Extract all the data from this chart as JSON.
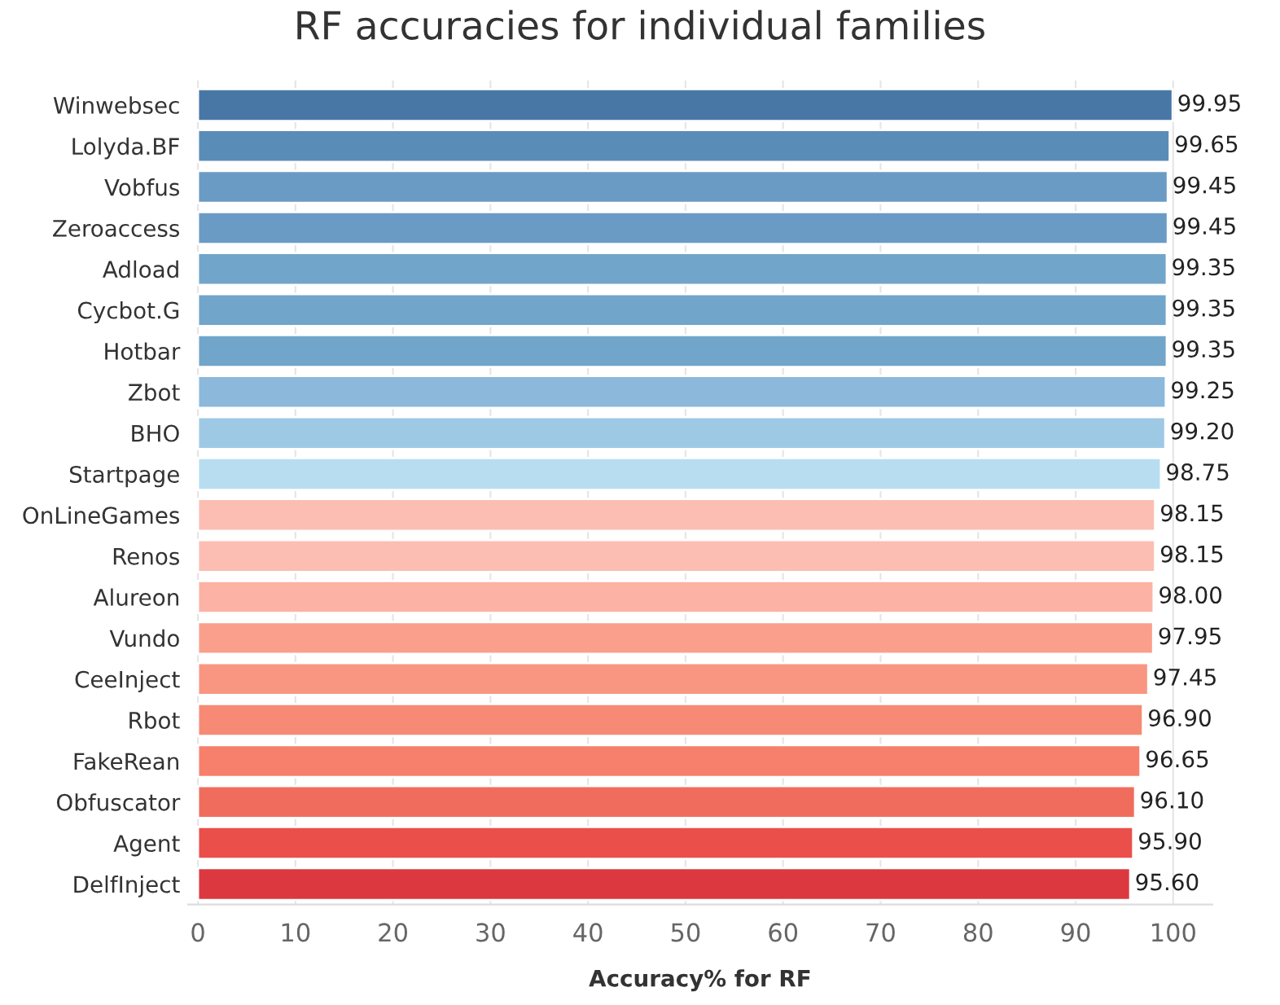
{
  "chart_data": {
    "type": "bar",
    "orientation": "horizontal",
    "title": "RF accuracies for individual families",
    "xlabel": "Accuracy% for RF",
    "categories": [
      "Winwebsec",
      "Lolyda.BF",
      "Vobfus",
      "Zeroaccess",
      "Adload",
      "Cycbot.G",
      "Hotbar",
      "Zbot",
      "BHO",
      "Startpage",
      "OnLineGames",
      "Renos",
      "Alureon",
      "Vundo",
      "CeeInject",
      "Rbot",
      "FakeRean",
      "Obfuscator",
      "Agent",
      "DelfInject"
    ],
    "values": [
      99.95,
      99.65,
      99.45,
      99.45,
      99.35,
      99.35,
      99.35,
      99.25,
      99.2,
      98.75,
      98.15,
      98.15,
      98.0,
      97.95,
      97.45,
      96.9,
      96.65,
      96.1,
      95.9,
      95.6
    ],
    "value_labels": [
      "99.95",
      "99.65",
      "99.45",
      "99.45",
      "99.35",
      "99.35",
      "99.35",
      "99.25",
      "99.20",
      "98.75",
      "98.15",
      "98.15",
      "98.00",
      "97.95",
      "97.45",
      "96.90",
      "96.65",
      "96.10",
      "95.90",
      "95.60"
    ],
    "colors": [
      "#4877a6",
      "#5a8cb8",
      "#6a9bc5",
      "#6a9bc5",
      "#72a5ca",
      "#72a5ca",
      "#72a5ca",
      "#8bb8db",
      "#9ec9e4",
      "#b8ddf0",
      "#fcbeb2",
      "#fcbeb2",
      "#fcb2a4",
      "#fa9f8c",
      "#f99682",
      "#f78a75",
      "#f6806b",
      "#f06d5e",
      "#ea4f4a",
      "#dc3840"
    ],
    "xlim": [
      -1,
      104
    ],
    "xticks": [
      0,
      10,
      20,
      30,
      40,
      50,
      60,
      70,
      80,
      90,
      100
    ],
    "grid": "x"
  }
}
